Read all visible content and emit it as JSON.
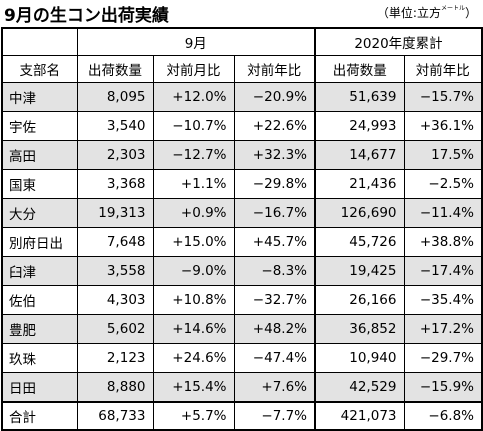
{
  "title": "9月の生コン出荷実績",
  "unit": {
    "main": "（単位:立方",
    "sub": "メートル",
    "close": "）"
  },
  "header_groups": {
    "month": "9月",
    "year": "2020年度累計"
  },
  "columns": [
    "支部名",
    "出荷数量",
    "対前月比",
    "対前年比",
    "出荷数量",
    "対前年比"
  ],
  "rows": [
    {
      "name": "中津",
      "m_qty": "8,095",
      "m_mom": "+12.0%",
      "m_yoy": "−20.9%",
      "y_qty": "51,639",
      "y_yoy": "−15.7%",
      "shade": true
    },
    {
      "name": "宇佐",
      "m_qty": "3,540",
      "m_mom": "−10.7%",
      "m_yoy": "+22.6%",
      "y_qty": "24,993",
      "y_yoy": "+36.1%",
      "shade": false
    },
    {
      "name": "高田",
      "m_qty": "2,303",
      "m_mom": "−12.7%",
      "m_yoy": "+32.3%",
      "y_qty": "14,677",
      "y_yoy": "17.5%",
      "shade": true
    },
    {
      "name": "国東",
      "m_qty": "3,368",
      "m_mom": "+1.1%",
      "m_yoy": "−29.8%",
      "y_qty": "21,436",
      "y_yoy": "−2.5%",
      "shade": false
    },
    {
      "name": "大分",
      "m_qty": "19,313",
      "m_mom": "+0.9%",
      "m_yoy": "−16.7%",
      "y_qty": "126,690",
      "y_yoy": "−11.4%",
      "shade": true
    },
    {
      "name": "別府日出",
      "m_qty": "7,648",
      "m_mom": "+15.0%",
      "m_yoy": "+45.7%",
      "y_qty": "45,726",
      "y_yoy": "+38.8%",
      "shade": false
    },
    {
      "name": "臼津",
      "m_qty": "3,558",
      "m_mom": "−9.0%",
      "m_yoy": "−8.3%",
      "y_qty": "19,425",
      "y_yoy": "−17.4%",
      "shade": true
    },
    {
      "name": "佐伯",
      "m_qty": "4,303",
      "m_mom": "+10.8%",
      "m_yoy": "−32.7%",
      "y_qty": "26,166",
      "y_yoy": "−35.4%",
      "shade": false
    },
    {
      "name": "豊肥",
      "m_qty": "5,602",
      "m_mom": "+14.6%",
      "m_yoy": "+48.2%",
      "y_qty": "36,852",
      "y_yoy": "+17.2%",
      "shade": true
    },
    {
      "name": "玖珠",
      "m_qty": "2,123",
      "m_mom": "+24.6%",
      "m_yoy": "−47.4%",
      "y_qty": "10,940",
      "y_yoy": "−29.7%",
      "shade": false
    },
    {
      "name": "日田",
      "m_qty": "8,880",
      "m_mom": "+15.4%",
      "m_yoy": "+7.6%",
      "y_qty": "42,529",
      "y_yoy": "−15.9%",
      "shade": true
    }
  ],
  "total": {
    "name": "合計",
    "m_qty": "68,733",
    "m_mom": "+5.7%",
    "m_yoy": "−7.7%",
    "y_qty": "421,073",
    "y_yoy": "−6.8%"
  }
}
